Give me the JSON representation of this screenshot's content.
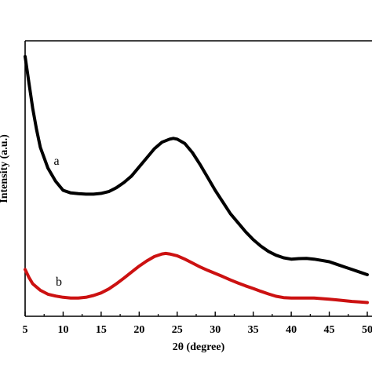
{
  "chart_data": {
    "type": "line",
    "title": "",
    "xlabel": "2θ (degree)",
    "ylabel": "Intensity (a.u.)",
    "xlim": [
      5,
      50
    ],
    "ylim": [
      0,
      100
    ],
    "xticks": [
      5,
      10,
      15,
      20,
      25,
      30,
      35,
      40,
      45,
      50
    ],
    "ytick_labels_shown": false,
    "grid": false,
    "legend": "none",
    "series": [
      {
        "label": "a",
        "color": "#000000",
        "points": [
          [
            5,
            100
          ],
          [
            5.5,
            90
          ],
          [
            6,
            80
          ],
          [
            6.5,
            72
          ],
          [
            7,
            65
          ],
          [
            8,
            57
          ],
          [
            9,
            52
          ],
          [
            10,
            48.5
          ],
          [
            11,
            47.5
          ],
          [
            12,
            47.2
          ],
          [
            13,
            47
          ],
          [
            14,
            47
          ],
          [
            15,
            47.3
          ],
          [
            16,
            48
          ],
          [
            17,
            49.5
          ],
          [
            18,
            51.5
          ],
          [
            19,
            54
          ],
          [
            20,
            57.5
          ],
          [
            21,
            61
          ],
          [
            22,
            64.5
          ],
          [
            23,
            67
          ],
          [
            24,
            68.2
          ],
          [
            24.5,
            68.5
          ],
          [
            25,
            68.2
          ],
          [
            26,
            66.5
          ],
          [
            27,
            63
          ],
          [
            28,
            58.5
          ],
          [
            29,
            53.5
          ],
          [
            30,
            48.5
          ],
          [
            31,
            44
          ],
          [
            32,
            39.5
          ],
          [
            33,
            36
          ],
          [
            34,
            32.5
          ],
          [
            35,
            29.5
          ],
          [
            36,
            27
          ],
          [
            37,
            25
          ],
          [
            38,
            23.5
          ],
          [
            39,
            22.5
          ],
          [
            40,
            22
          ],
          [
            41,
            22.2
          ],
          [
            42,
            22.3
          ],
          [
            43,
            22
          ],
          [
            44,
            21.5
          ],
          [
            45,
            21
          ],
          [
            46,
            20
          ],
          [
            47,
            19
          ],
          [
            48,
            18
          ],
          [
            49,
            17
          ],
          [
            50,
            16
          ]
        ]
      },
      {
        "label": "b",
        "color": "#cc1111",
        "points": [
          [
            5,
            18
          ],
          [
            5.5,
            15
          ],
          [
            6,
            12.5
          ],
          [
            7,
            10
          ],
          [
            8,
            8.5
          ],
          [
            9,
            7.8
          ],
          [
            10,
            7.3
          ],
          [
            11,
            7
          ],
          [
            12,
            7
          ],
          [
            13,
            7.3
          ],
          [
            14,
            8
          ],
          [
            15,
            9
          ],
          [
            16,
            10.5
          ],
          [
            17,
            12.5
          ],
          [
            18,
            14.7
          ],
          [
            19,
            17
          ],
          [
            20,
            19.3
          ],
          [
            21,
            21.3
          ],
          [
            22,
            23
          ],
          [
            23,
            24
          ],
          [
            23.5,
            24.2
          ],
          [
            24,
            24
          ],
          [
            25,
            23.3
          ],
          [
            26,
            22
          ],
          [
            27,
            20.5
          ],
          [
            28,
            19
          ],
          [
            29,
            17.7
          ],
          [
            30,
            16.5
          ],
          [
            31,
            15.3
          ],
          [
            32,
            14
          ],
          [
            33,
            12.8
          ],
          [
            34,
            11.7
          ],
          [
            35,
            10.7
          ],
          [
            36,
            9.6
          ],
          [
            37,
            8.6
          ],
          [
            38,
            7.7
          ],
          [
            39,
            7.2
          ],
          [
            40,
            7
          ],
          [
            41,
            7
          ],
          [
            42,
            7
          ],
          [
            43,
            7
          ],
          [
            44,
            6.8
          ],
          [
            45,
            6.6
          ],
          [
            46,
            6.3
          ],
          [
            47,
            6
          ],
          [
            48,
            5.7
          ],
          [
            49,
            5.5
          ],
          [
            50,
            5.3
          ]
        ]
      }
    ]
  }
}
